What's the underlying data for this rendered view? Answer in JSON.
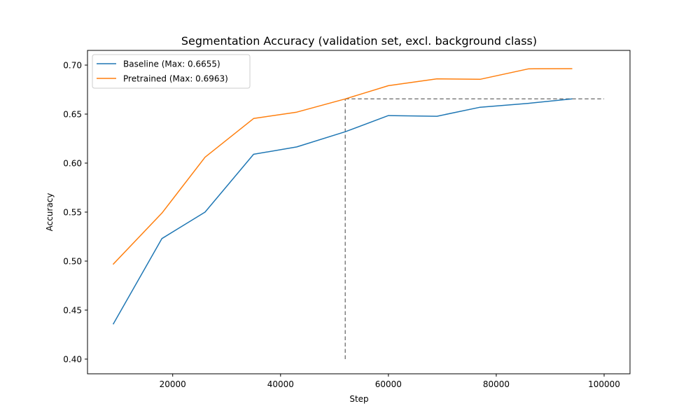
{
  "chart_data": {
    "type": "line",
    "title": "Segmentation Accuracy (validation set, excl. background class)",
    "xlabel": "Step",
    "ylabel": "Accuracy",
    "xlim": [
      4200,
      104800
    ],
    "ylim": [
      0.385,
      0.715
    ],
    "x_ticks": [
      20000,
      40000,
      60000,
      80000,
      100000
    ],
    "y_ticks": [
      0.4,
      0.45,
      0.5,
      0.55,
      0.6,
      0.65,
      0.7
    ],
    "grid": false,
    "legend_position": "upper-left",
    "x": [
      9000,
      18000,
      26000,
      35000,
      43000,
      52000,
      60000,
      69000,
      77000,
      86000,
      94000
    ],
    "series": [
      {
        "name": "Baseline (Max: 0.6655)",
        "color": "#1f77b4",
        "values": [
          0.436,
          0.523,
          0.55,
          0.609,
          0.6165,
          0.632,
          0.6485,
          0.6478,
          0.657,
          0.661,
          0.6655
        ]
      },
      {
        "name": "Pretrained (Max: 0.6963)",
        "color": "#ff7f0e",
        "values": [
          0.497,
          0.549,
          0.606,
          0.6455,
          0.652,
          0.6655,
          0.679,
          0.686,
          0.6855,
          0.6962,
          0.6963
        ]
      }
    ],
    "reference_lines": {
      "color": "#808080",
      "style": "dashed",
      "horizontal": {
        "y": 0.6655,
        "x_from": 52000,
        "x_to": 100000
      },
      "vertical": {
        "x": 52000,
        "y_from": 0.4,
        "y_to": 0.6655
      }
    }
  }
}
